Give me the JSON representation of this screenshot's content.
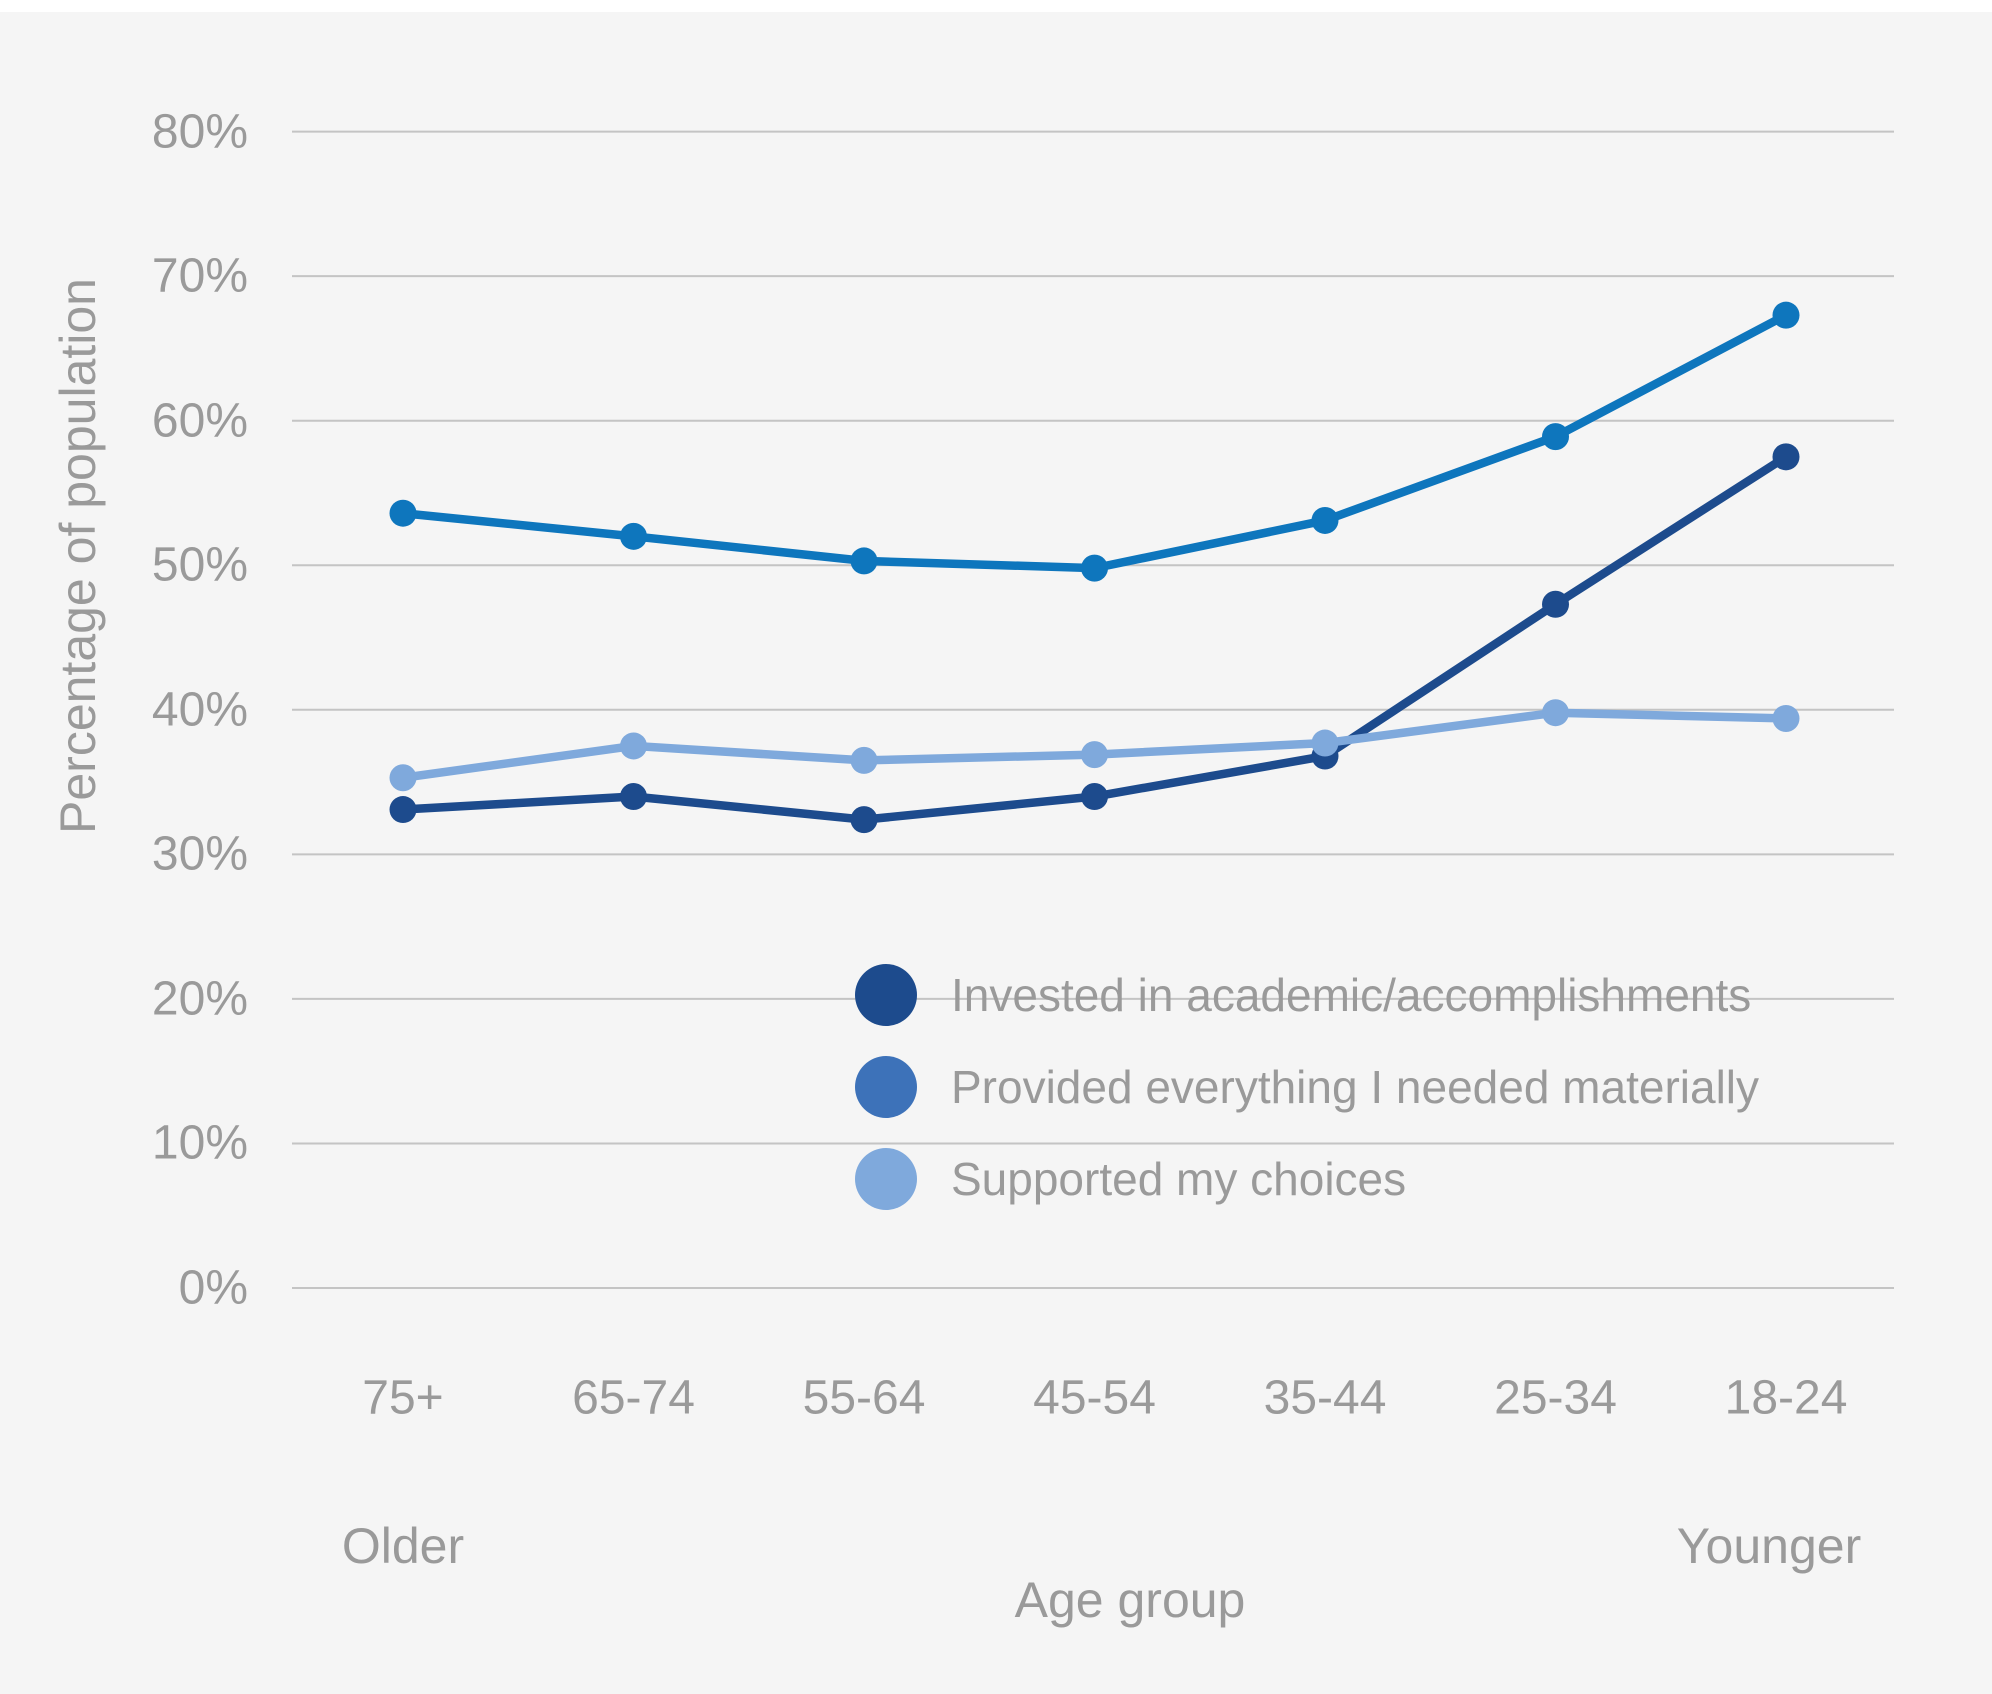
{
  "colors": {
    "background": "#f5f5f5",
    "top_strip": "#ffffff",
    "gridline": "#c4c4c4",
    "label_text": "#9a9a9a"
  },
  "chart_data": {
    "type": "line",
    "title": "",
    "xlabel": "Age group",
    "ylabel": "Percentage of population",
    "categories": [
      "75+",
      "65-74",
      "55-64",
      "45-54",
      "35-44",
      "25-34",
      "18-24"
    ],
    "x_direction_labels": {
      "left": "Older",
      "right": "Younger"
    },
    "y_tick_labels": [
      "0%",
      "10%",
      "20%",
      "30%",
      "40%",
      "50%",
      "60%",
      "70%",
      "80%"
    ],
    "ylim": [
      0,
      80
    ],
    "y_tick_step": 10,
    "grid": true,
    "legend_position": "inside-lower-center",
    "marker": "circle",
    "series": [
      {
        "name": "Invested in academic/accomplishments",
        "color": "#1d4b8d",
        "legend_color": "#1d4b8d",
        "values": [
          33.1,
          34.0,
          32.4,
          34.0,
          36.8,
          47.3,
          57.5
        ]
      },
      {
        "name": "Provided everything I needed materially",
        "color": "#0e76bd",
        "legend_color": "#3d72b9",
        "values": [
          53.6,
          52.0,
          50.3,
          49.8,
          53.1,
          58.9,
          67.3
        ]
      },
      {
        "name": "Supported my choices",
        "color": "#7fa9dc",
        "legend_color": "#7fa9dc",
        "values": [
          35.3,
          37.5,
          36.5,
          36.9,
          37.7,
          39.8,
          39.4
        ]
      }
    ]
  }
}
